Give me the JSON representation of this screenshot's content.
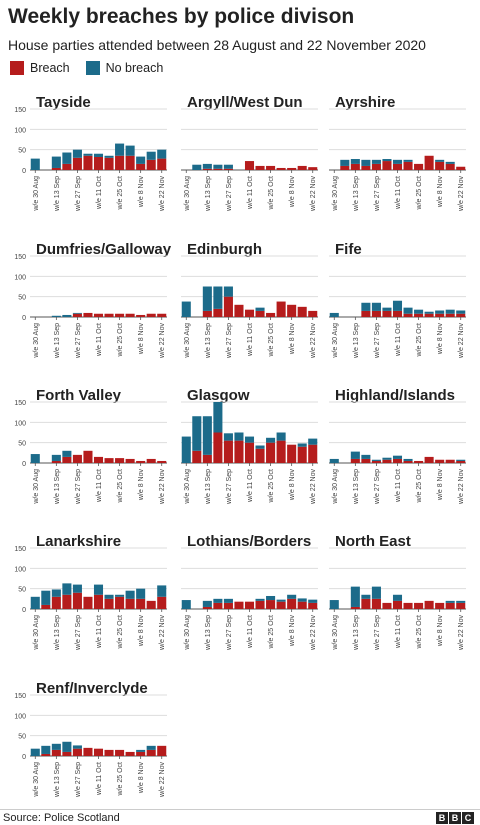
{
  "title": "Weekly breaches by police divison",
  "subtitle": "House parties attended between 28 August and 22 November 2020",
  "legend": {
    "breach_label": "Breach",
    "no_breach_label": "No breach",
    "breach_color": "#b51c1c",
    "no_breach_color": "#1c6b8a"
  },
  "source": "Source: Police Scotland",
  "logo": [
    "B",
    "B",
    "C"
  ],
  "chart_data": {
    "type": "bar",
    "stacked": true,
    "categories": [
      "w/e 30 Aug",
      "w/e 6 Sep",
      "w/e 13 Sep",
      "w/e 20 Sep",
      "w/e 27 Sep",
      "w/e 4 Oct",
      "w/e 11 Oct",
      "w/e 18 Oct",
      "w/e 25 Oct",
      "w/e 1 Nov",
      "w/e 8 Nov",
      "w/e 15 Nov",
      "w/e 22 Nov"
    ],
    "tick_labels": [
      "w/e 30 Aug",
      "w/e 13 Sep",
      "w/e 27 Sep",
      "w/e 11 Oct",
      "w/e 25 Oct",
      "w/e 8 Nov",
      "w/e 22 Nov"
    ],
    "yticks": [
      0,
      50,
      100,
      150
    ],
    "ylim": [
      0,
      150
    ],
    "grid": true,
    "legend_position": "top-left",
    "panels": [
      {
        "name": "Tayside",
        "breach": [
          0,
          0,
          5,
          15,
          30,
          35,
          32,
          30,
          35,
          35,
          15,
          25,
          28
        ],
        "no_breach": [
          28,
          0,
          28,
          28,
          20,
          5,
          8,
          5,
          30,
          25,
          18,
          20,
          22
        ]
      },
      {
        "name": "Argyll/West Dun",
        "breach": [
          0,
          0,
          3,
          3,
          3,
          0,
          22,
          10,
          10,
          5,
          5,
          10,
          7
        ],
        "no_breach": [
          0,
          13,
          12,
          10,
          10,
          0,
          0,
          0,
          0,
          0,
          0,
          0,
          0
        ]
      },
      {
        "name": "Ayrshire",
        "breach": [
          0,
          10,
          15,
          10,
          15,
          22,
          15,
          20,
          15,
          35,
          20,
          15,
          8
        ],
        "no_breach": [
          0,
          15,
          12,
          15,
          10,
          5,
          10,
          5,
          0,
          0,
          5,
          5,
          0
        ]
      },
      {
        "name": "Dumfries/Galloway",
        "breach": [
          0,
          0,
          0,
          0,
          8,
          10,
          8,
          8,
          8,
          8,
          5,
          8,
          8
        ],
        "no_breach": [
          0,
          0,
          3,
          5,
          2,
          0,
          0,
          0,
          0,
          0,
          0,
          0,
          0
        ]
      },
      {
        "name": "Edinburgh",
        "breach": [
          0,
          0,
          15,
          20,
          50,
          30,
          18,
          15,
          10,
          38,
          30,
          25,
          15
        ],
        "no_breach": [
          38,
          0,
          60,
          55,
          25,
          0,
          0,
          8,
          0,
          0,
          0,
          0,
          0
        ]
      },
      {
        "name": "Fife",
        "breach": [
          0,
          0,
          0,
          15,
          15,
          15,
          15,
          8,
          8,
          8,
          8,
          8,
          8
        ],
        "no_breach": [
          10,
          0,
          0,
          20,
          20,
          8,
          25,
          15,
          10,
          5,
          8,
          10,
          8
        ]
      },
      {
        "name": "Forth Valley",
        "breach": [
          0,
          0,
          5,
          15,
          20,
          30,
          15,
          12,
          12,
          10,
          5,
          10,
          5
        ],
        "no_breach": [
          22,
          0,
          15,
          15,
          0,
          0,
          0,
          0,
          0,
          0,
          0,
          0,
          0
        ]
      },
      {
        "name": "Glasgow",
        "breach": [
          0,
          30,
          20,
          75,
          55,
          55,
          50,
          35,
          50,
          55,
          45,
          40,
          45
        ],
        "no_breach": [
          65,
          85,
          95,
          75,
          18,
          20,
          15,
          8,
          12,
          20,
          0,
          8,
          15
        ]
      },
      {
        "name": "Highland/Islands",
        "breach": [
          0,
          0,
          10,
          10,
          5,
          8,
          10,
          5,
          5,
          15,
          8,
          8,
          5
        ],
        "no_breach": [
          10,
          0,
          18,
          10,
          3,
          5,
          8,
          5,
          0,
          0,
          0,
          0,
          3
        ]
      },
      {
        "name": "Lanarkshire",
        "breach": [
          0,
          10,
          30,
          35,
          40,
          30,
          35,
          25,
          30,
          25,
          25,
          20,
          30
        ],
        "no_breach": [
          30,
          35,
          18,
          28,
          20,
          0,
          25,
          10,
          5,
          20,
          25,
          0,
          28
        ]
      },
      {
        "name": "Lothians/Borders",
        "breach": [
          0,
          0,
          5,
          15,
          15,
          18,
          18,
          20,
          22,
          18,
          25,
          18,
          15
        ],
        "no_breach": [
          22,
          0,
          15,
          10,
          10,
          0,
          0,
          5,
          10,
          5,
          10,
          8,
          8
        ]
      },
      {
        "name": "North East",
        "breach": [
          0,
          0,
          5,
          25,
          25,
          15,
          20,
          15,
          15,
          20,
          15,
          15,
          15
        ],
        "no_breach": [
          22,
          0,
          50,
          10,
          30,
          0,
          15,
          0,
          0,
          0,
          0,
          5,
          5
        ]
      },
      {
        "name": "Renf/Inverclyde",
        "breach": [
          0,
          5,
          15,
          10,
          18,
          20,
          18,
          15,
          15,
          10,
          10,
          15,
          25
        ],
        "no_breach": [
          18,
          20,
          15,
          25,
          8,
          0,
          0,
          0,
          0,
          0,
          5,
          10,
          0
        ]
      }
    ]
  }
}
